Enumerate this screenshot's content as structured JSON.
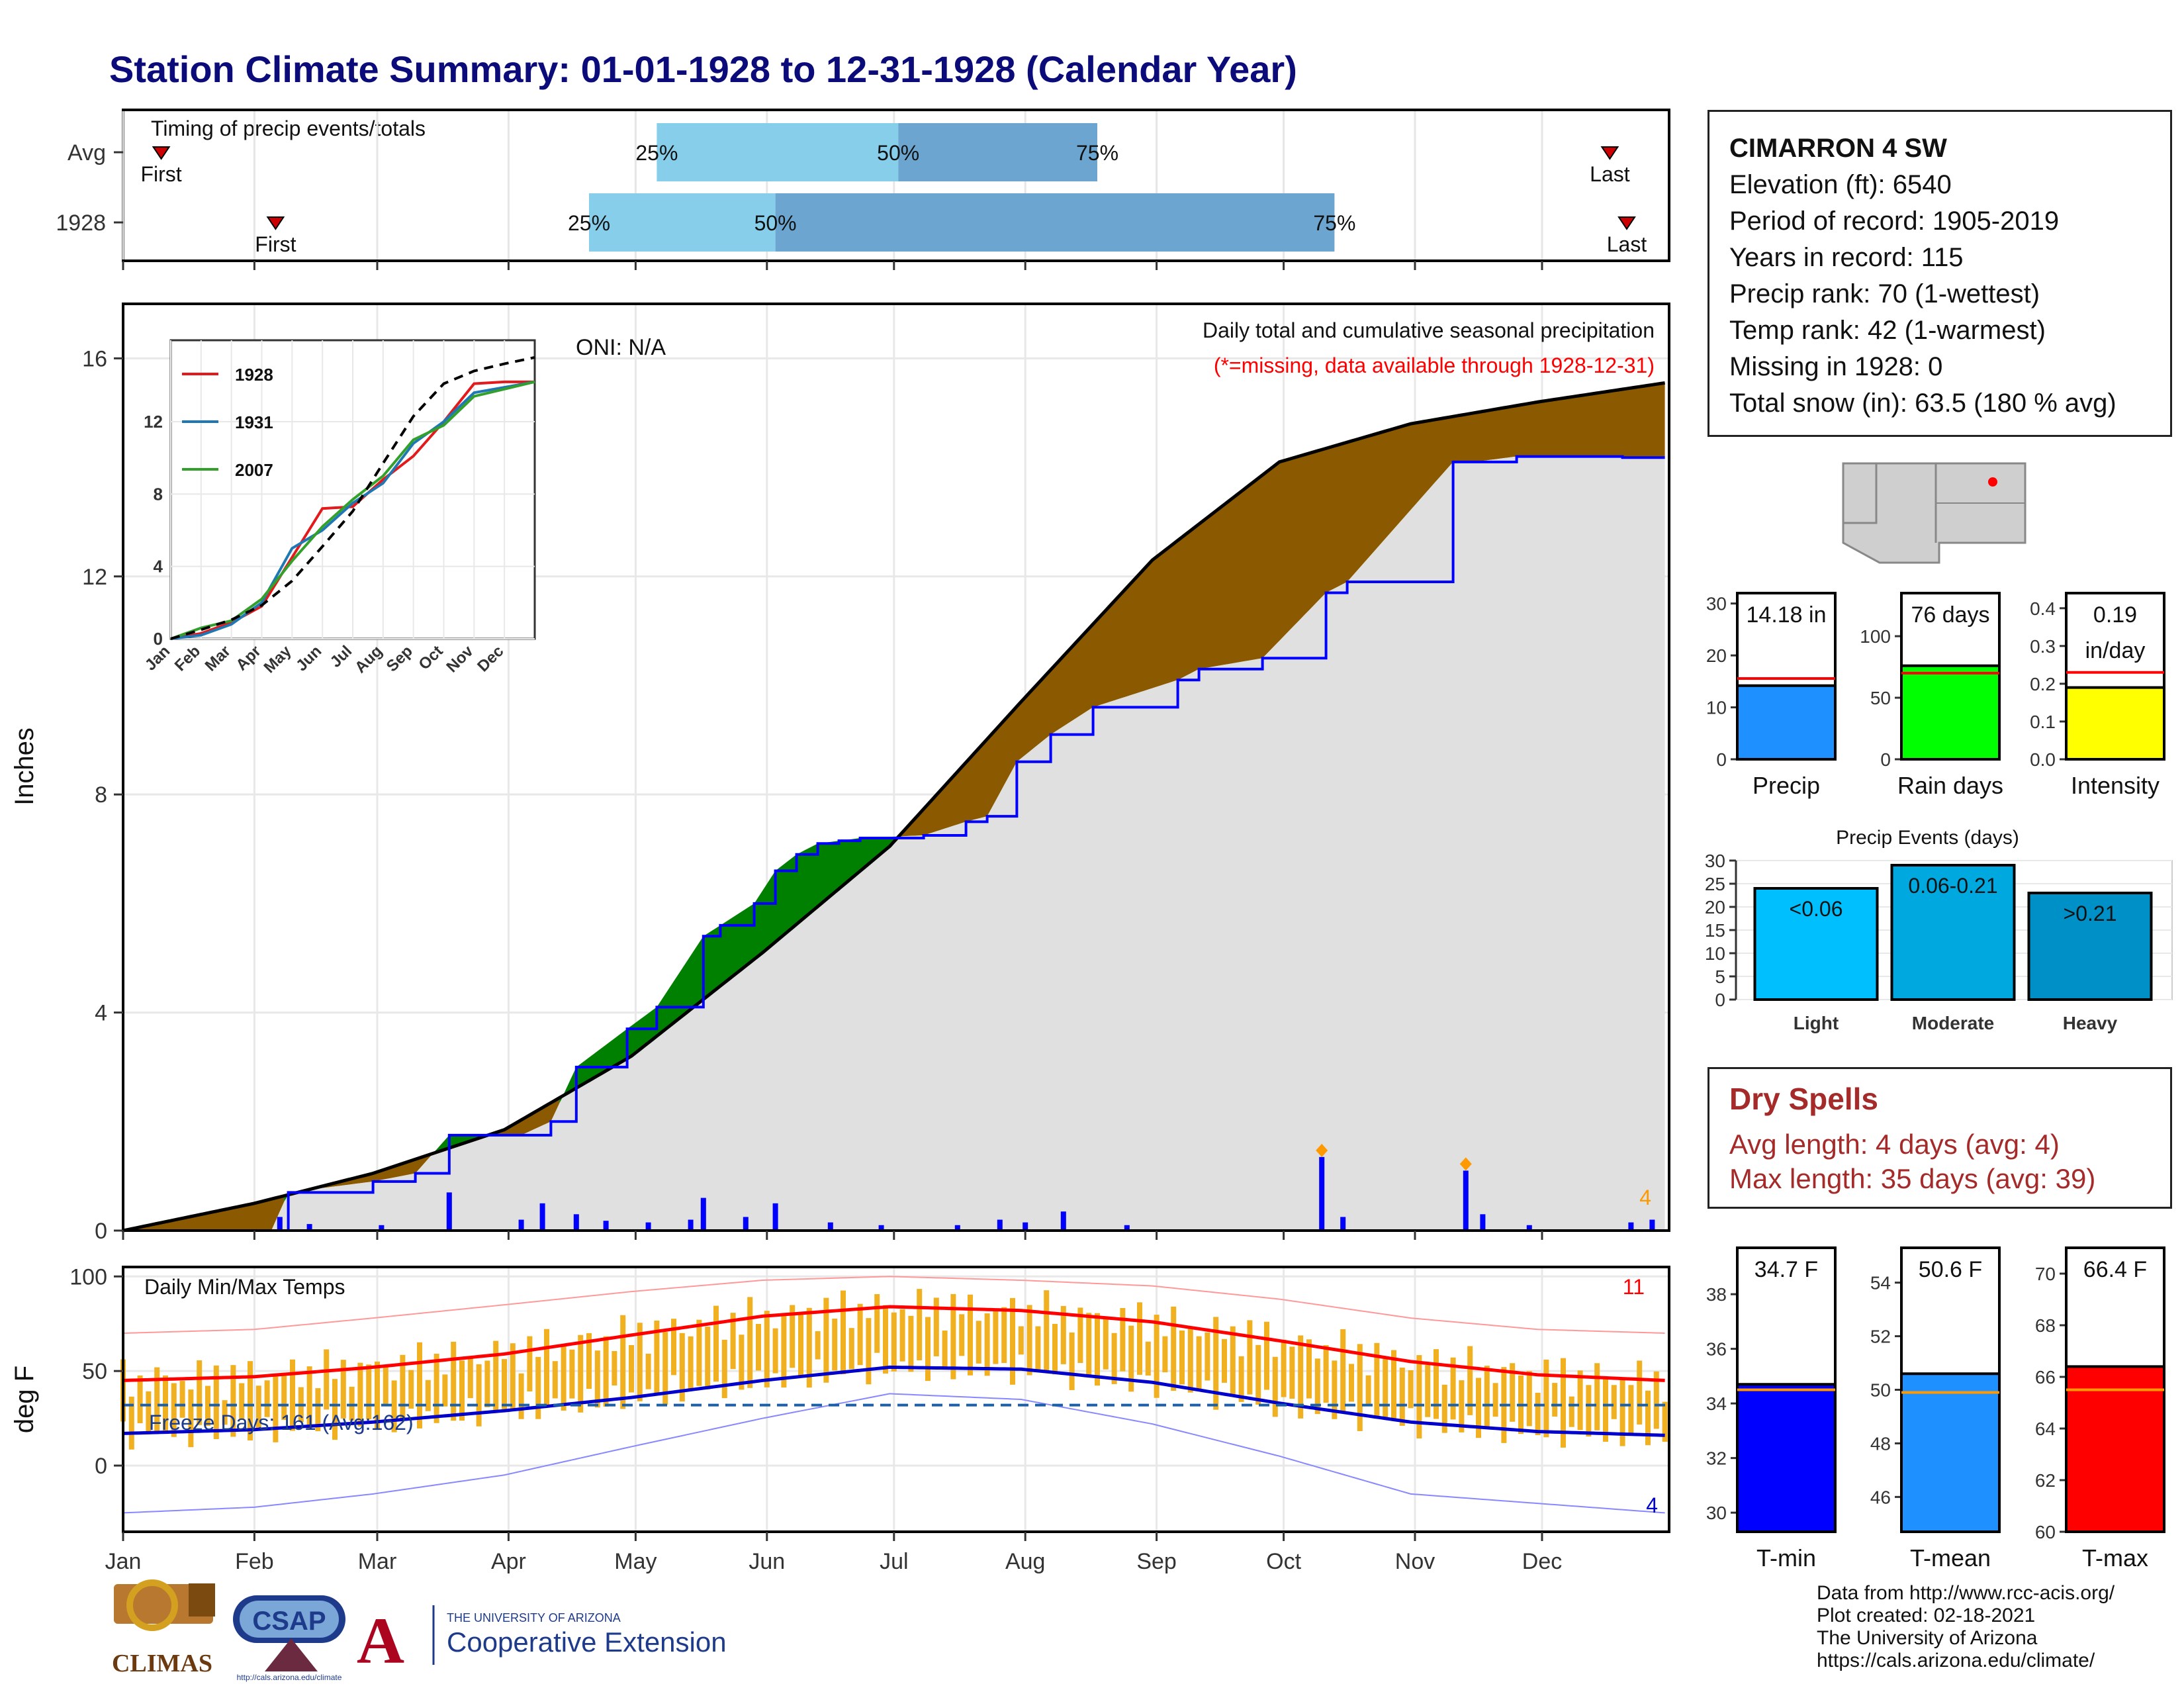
{
  "title": "Station Climate Summary: 01-01-1928 to 12-31-1928 (Calendar Year)",
  "colors": {
    "title": "#0b0b7a",
    "avg_cum": "#000000",
    "year_cum": "#0000ff",
    "above_fill": "#008000",
    "below_fill": "#8b5a00",
    "area_fill": "#e0e0e0",
    "tmax_avg": "#ff0000",
    "tmin_avg": "#0000cc",
    "daily_range": "#f0b020",
    "dry_spell": "#a52a2a"
  },
  "station": {
    "name": "CIMARRON 4 SW",
    "lines": [
      "Elevation (ft): 6540",
      "Period of record: 1905-2019",
      "Years in record: 115",
      "Precip rank: 70 (1-wettest)",
      "Temp rank: 42 (1-warmest)",
      "Missing in 1928: 0",
      "Total snow (in): 63.5 (180 % avg)"
    ]
  },
  "timing": {
    "label": "Timing of precip events/totals",
    "rows": [
      {
        "label": "Avg",
        "first": "Jan 10",
        "p25": "May 6",
        "p50": "Jul 2",
        "p75": "Aug 18",
        "last": "Dec 17"
      },
      {
        "label": "1928",
        "first": "Feb 6",
        "p25": "Apr 20",
        "p50": "Jun 3",
        "p75": "Oct 13",
        "last": "Dec 21"
      }
    ],
    "pct_labels": [
      "25%",
      "50%",
      "75%"
    ],
    "first_label": "First",
    "last_label": "Last"
  },
  "months": [
    "Jan",
    "Feb",
    "Mar",
    "Apr",
    "May",
    "Jun",
    "Jul",
    "Aug",
    "Sep",
    "Oct",
    "Nov",
    "Dec"
  ],
  "precip_chart": {
    "ylabel": "Inches",
    "yticks": [
      0,
      4,
      8,
      12,
      16
    ],
    "ylim": [
      0,
      17
    ],
    "oni": "ONI: N/A",
    "caption": "Daily total and cumulative seasonal precipitation",
    "missing_note": "(*=missing, data available through 1928-12-31)",
    "corner_count": "4"
  },
  "chart_data": [
    {
      "type": "area",
      "title": "Daily total and cumulative seasonal precipitation",
      "ylabel": "Inches",
      "ylim": [
        0,
        17
      ],
      "series": [
        {
          "name": "avg",
          "x_day": [
            1,
            32,
            60,
            91,
            121,
            152,
            182,
            213,
            244,
            274,
            305,
            335,
            365
          ],
          "values": [
            0.0,
            0.5,
            1.05,
            1.85,
            3.2,
            5.1,
            7.05,
            9.7,
            12.3,
            14.1,
            14.8,
            15.2,
            15.55
          ]
        },
        {
          "name": "1928",
          "x_day": [
            1,
            36,
            40,
            60,
            70,
            78,
            95,
            102,
            108,
            120,
            127,
            138,
            142,
            150,
            155,
            160,
            165,
            170,
            175,
            190,
            200,
            205,
            212,
            220,
            230,
            250,
            255,
            270,
            285,
            290,
            315,
            320,
            330,
            340,
            355,
            365
          ],
          "values": [
            0,
            0,
            0.7,
            0.9,
            1.05,
            1.75,
            1.75,
            2.0,
            3.0,
            3.7,
            4.1,
            5.4,
            5.6,
            6.0,
            6.6,
            6.9,
            7.1,
            7.15,
            7.2,
            7.25,
            7.5,
            7.6,
            8.6,
            9.1,
            9.6,
            10.1,
            10.3,
            10.5,
            11.7,
            11.9,
            14.1,
            14.1,
            14.2,
            14.2,
            14.18,
            14.18
          ]
        },
        {
          "name": "daily_precip",
          "x_day": [
            38,
            45,
            62,
            78,
            95,
            100,
            108,
            115,
            125,
            135,
            138,
            148,
            155,
            168,
            180,
            198,
            208,
            214,
            223,
            238,
            284,
            289,
            318,
            322,
            333,
            357,
            362
          ],
          "values": [
            0.25,
            0.12,
            0.1,
            0.7,
            0.2,
            0.5,
            0.3,
            0.18,
            0.15,
            0.2,
            0.6,
            0.25,
            0.5,
            0.15,
            0.1,
            0.1,
            0.2,
            0.15,
            0.35,
            0.1,
            1.35,
            0.25,
            1.1,
            0.3,
            0.1,
            0.15,
            0.2
          ]
        }
      ],
      "inset": {
        "type": "line",
        "xticks": [
          "Jan",
          "Feb",
          "Mar",
          "Apr",
          "May",
          "Jun",
          "Jul",
          "Aug",
          "Sep",
          "Oct",
          "Nov",
          "Dec"
        ],
        "yticks": [
          0,
          4,
          8,
          12
        ],
        "series": [
          {
            "name": "1928",
            "color": "#e31a1c",
            "values": [
              0,
              0.3,
              0.9,
              1.8,
              4.5,
              7.2,
              7.3,
              8.8,
              10.1,
              12.0,
              14.1,
              14.2,
              14.2
            ]
          },
          {
            "name": "1931",
            "color": "#1f78b4",
            "values": [
              0,
              0.2,
              0.8,
              2.0,
              5.0,
              6.0,
              7.5,
              8.6,
              10.8,
              12.0,
              13.6,
              13.9,
              14.2
            ]
          },
          {
            "name": "2007",
            "color": "#33a02c",
            "values": [
              0,
              0.6,
              1.0,
              2.2,
              4.3,
              6.2,
              7.7,
              9.0,
              11.0,
              11.8,
              13.4,
              13.8,
              14.2
            ]
          },
          {
            "name": "avg",
            "color": "#000000",
            "values": [
              0,
              0.5,
              1.05,
              1.85,
              3.2,
              5.1,
              7.05,
              9.7,
              12.3,
              14.1,
              14.8,
              15.2,
              15.55
            ]
          }
        ]
      }
    },
    {
      "type": "bar",
      "title": "Precip",
      "categories": [
        "Precip"
      ],
      "values": [
        14.18
      ],
      "label": "14.18 in",
      "avg": 15.55,
      "ylim": [
        0,
        32
      ],
      "yticks": [
        0,
        10,
        20,
        30
      ],
      "color": "#1e90ff"
    },
    {
      "type": "bar",
      "title": "Rain days",
      "categories": [
        "Rain days"
      ],
      "values": [
        76
      ],
      "label": "76 days",
      "avg": 70,
      "ylim": [
        0,
        135
      ],
      "yticks": [
        0,
        50,
        100
      ],
      "color": "#00ff00"
    },
    {
      "type": "bar",
      "title": "Intensity",
      "categories": [
        "Intensity"
      ],
      "values": [
        0.19
      ],
      "label": "0.19",
      "label2": "in/day",
      "avg": 0.23,
      "ylim": [
        0,
        0.44
      ],
      "yticks": [
        0.0,
        0.1,
        0.2,
        0.3,
        0.4
      ],
      "color": "#ffff00"
    },
    {
      "type": "bar",
      "title": "Precip Events (days)",
      "categories": [
        "Light",
        "Moderate",
        "Heavy"
      ],
      "values": [
        24,
        29,
        23
      ],
      "labels": [
        "<0.06",
        "0.06-0.21",
        ">0.21"
      ],
      "ylim": [
        0,
        30
      ],
      "yticks": [
        0,
        5,
        10,
        15,
        20,
        25,
        30
      ],
      "colors": [
        "#00bfff",
        "#00a8e0",
        "#0090c8"
      ]
    },
    {
      "type": "line",
      "title": "Daily Min/Max Temps",
      "ylabel": "deg F",
      "ylim": [
        -35,
        105
      ],
      "yticks": [
        0,
        50,
        100
      ],
      "freeze_line": 32,
      "series": [
        {
          "name": "avg_tmax",
          "x_day": [
            1,
            32,
            60,
            91,
            121,
            152,
            182,
            213,
            244,
            274,
            305,
            335,
            365
          ],
          "values": [
            45,
            47,
            52,
            59,
            69,
            79,
            84,
            82,
            76,
            66,
            55,
            48,
            45
          ]
        },
        {
          "name": "avg_tmin",
          "x_day": [
            1,
            32,
            60,
            91,
            121,
            152,
            182,
            213,
            244,
            274,
            305,
            335,
            365
          ],
          "values": [
            17,
            19,
            23,
            29,
            36,
            45,
            52,
            51,
            44,
            33,
            23,
            18,
            16
          ]
        },
        {
          "name": "record_max",
          "x_day": [
            1,
            32,
            60,
            91,
            121,
            152,
            182,
            213,
            244,
            274,
            305,
            335,
            365
          ],
          "values": [
            70,
            72,
            78,
            85,
            92,
            98,
            100,
            98,
            95,
            88,
            78,
            72,
            70
          ]
        },
        {
          "name": "record_min",
          "x_day": [
            1,
            32,
            60,
            91,
            121,
            152,
            182,
            213,
            244,
            274,
            305,
            335,
            365
          ],
          "values": [
            -25,
            -22,
            -15,
            -5,
            10,
            25,
            38,
            35,
            22,
            5,
            -15,
            -20,
            -25
          ]
        }
      ],
      "freeze_label": "Freeze Days: 161 (Avg:162)",
      "max_count": "11",
      "min_count": "4"
    },
    {
      "type": "bar",
      "title": "T-min",
      "categories": [
        "T-min"
      ],
      "values": [
        34.7
      ],
      "label": "34.7 F",
      "avg": 34.5,
      "ylim": [
        29.3,
        39.7
      ],
      "yticks": [
        30,
        32,
        34,
        36,
        38
      ],
      "color": "#0000ff"
    },
    {
      "type": "bar",
      "title": "T-mean",
      "categories": [
        "T-mean"
      ],
      "values": [
        50.6
      ],
      "label": "50.6 F",
      "avg": 49.9,
      "ylim": [
        44.7,
        55.3
      ],
      "yticks": [
        46,
        48,
        50,
        52,
        54
      ],
      "color": "#1e90ff"
    },
    {
      "type": "bar",
      "title": "T-max",
      "categories": [
        "T-max"
      ],
      "values": [
        66.4
      ],
      "label": "66.4 F",
      "avg": 65.5,
      "ylim": [
        60,
        71
      ],
      "yticks": [
        60,
        62,
        64,
        66,
        68,
        70
      ],
      "color": "#ff0000"
    }
  ],
  "temp_chart": {
    "label": "Daily Min/Max Temps",
    "ylabel": "deg F",
    "freeze_label": "Freeze Days: 161 (Avg:162)",
    "max_count": "11",
    "min_count": "4"
  },
  "dry_spells": {
    "title": "Dry Spells",
    "avg": "Avg length: 4 days (avg: 4)",
    "max": "Max length: 35 days (avg: 39)"
  },
  "footer": {
    "lines": [
      "Data from http://www.rcc-acis.org/",
      "Plot created: 02-18-2021",
      "The University of Arizona",
      "https://cals.arizona.edu/climate/"
    ]
  },
  "logos": {
    "climas": "CLIMAS",
    "csap": "CSAP",
    "csap_url": "http://cals.arizona.edu/climate",
    "ua_small": "THE UNIVERSITY OF ARIZONA",
    "ua_big": "Cooperative Extension"
  }
}
